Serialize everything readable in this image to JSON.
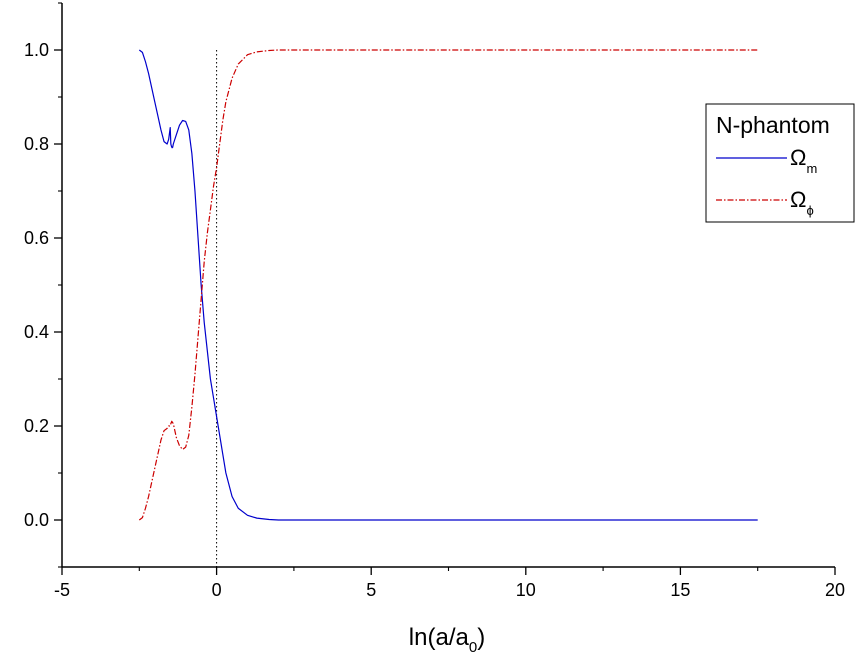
{
  "chart_data": {
    "type": "line",
    "xlabel": "ln(a/a",
    "xlabel_sub": "0",
    "xlabel_close": ")",
    "ylabel": "",
    "xlim": [
      -5,
      20
    ],
    "ylim": [
      -0.1,
      1.1
    ],
    "x_ticks": [
      -5,
      0,
      5,
      10,
      15,
      20
    ],
    "x_tick_labels": [
      "-5",
      "0",
      "5",
      "10",
      "15",
      "20"
    ],
    "y_ticks": [
      0.0,
      0.2,
      0.4,
      0.6,
      0.8,
      1.0
    ],
    "y_tick_labels": [
      "0.0",
      "0.2",
      "0.4",
      "0.6",
      "0.8",
      "1.0"
    ],
    "vertical_reference_line": {
      "x": 0,
      "style": "dotted",
      "ymin": 0.0,
      "ymax": 1.0
    },
    "legend": {
      "title": "N-phantom",
      "placement": "right",
      "entries": [
        {
          "symbol": "Ω",
          "sub": "m",
          "series": "omega_m"
        },
        {
          "symbol": "Ω",
          "sub": "ϕ",
          "series": "omega_phi"
        }
      ]
    },
    "series": [
      {
        "key": "omega_m",
        "color": "#0000cc",
        "style": "solid",
        "x": [
          -2.5,
          -2.4,
          -2.3,
          -2.2,
          -2.1,
          -2.0,
          -1.9,
          -1.8,
          -1.7,
          -1.6,
          -1.55,
          -1.5,
          -1.48,
          -1.46,
          -1.44,
          -1.42,
          -1.4,
          -1.3,
          -1.2,
          -1.1,
          -1.0,
          -0.9,
          -0.8,
          -0.7,
          -0.6,
          -0.5,
          -0.4,
          -0.3,
          -0.2,
          -0.1,
          0.0,
          0.1,
          0.2,
          0.3,
          0.5,
          0.7,
          1.0,
          1.3,
          1.7,
          2.0,
          3.0,
          5.0,
          10.0,
          15.0,
          17.5
        ],
        "y": [
          1.0,
          0.995,
          0.975,
          0.95,
          0.92,
          0.89,
          0.86,
          0.83,
          0.805,
          0.8,
          0.81,
          0.835,
          0.8,
          0.795,
          0.792,
          0.793,
          0.8,
          0.82,
          0.84,
          0.85,
          0.848,
          0.83,
          0.78,
          0.7,
          0.6,
          0.5,
          0.42,
          0.36,
          0.3,
          0.26,
          0.22,
          0.18,
          0.14,
          0.1,
          0.05,
          0.025,
          0.01,
          0.004,
          0.001,
          0.0,
          0.0,
          0.0,
          0.0,
          0.0,
          0.0
        ]
      },
      {
        "key": "omega_phi",
        "color": "#cc0000",
        "style": "dash-dot",
        "x": [
          -2.5,
          -2.4,
          -2.3,
          -2.2,
          -2.1,
          -2.0,
          -1.9,
          -1.8,
          -1.7,
          -1.6,
          -1.55,
          -1.5,
          -1.48,
          -1.45,
          -1.4,
          -1.35,
          -1.3,
          -1.2,
          -1.1,
          -1.0,
          -0.9,
          -0.8,
          -0.7,
          -0.6,
          -0.5,
          -0.4,
          -0.3,
          -0.2,
          -0.1,
          0.0,
          0.1,
          0.2,
          0.3,
          0.5,
          0.7,
          1.0,
          1.3,
          1.7,
          2.0,
          3.0,
          5.0,
          10.0,
          15.0,
          17.5
        ],
        "y": [
          0.0,
          0.005,
          0.025,
          0.05,
          0.08,
          0.11,
          0.14,
          0.17,
          0.19,
          0.195,
          0.2,
          0.2,
          0.205,
          0.21,
          0.205,
          0.19,
          0.175,
          0.158,
          0.15,
          0.155,
          0.18,
          0.24,
          0.31,
          0.39,
          0.47,
          0.55,
          0.61,
          0.66,
          0.71,
          0.75,
          0.8,
          0.85,
          0.89,
          0.94,
          0.97,
          0.99,
          0.996,
          0.999,
          1.0,
          1.0,
          1.0,
          1.0,
          1.0,
          1.0
        ]
      }
    ]
  }
}
